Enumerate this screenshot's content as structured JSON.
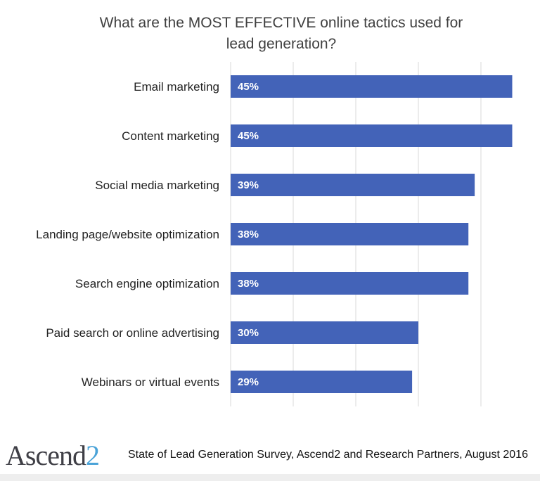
{
  "chart_data": {
    "type": "bar",
    "orientation": "horizontal",
    "title": "What are the MOST EFFECTIVE online tactics used for lead generation?",
    "categories": [
      "Email marketing",
      "Content marketing",
      "Social media marketing",
      "Landing page/website optimization",
      "Search engine optimization",
      "Paid search or online advertising",
      "Webinars or virtual events"
    ],
    "values": [
      45,
      45,
      39,
      38,
      38,
      30,
      29
    ],
    "data_labels": [
      "45%",
      "45%",
      "39%",
      "38%",
      "38%",
      "30%",
      "29%"
    ],
    "xlim": [
      0,
      50
    ],
    "gridlines": [
      0,
      10,
      20,
      30,
      40,
      50
    ],
    "grid": true,
    "legend": "none",
    "bar_color": "#4363b8"
  },
  "footer": {
    "logo_text": "Ascend",
    "logo_suffix": "2",
    "source": "State of Lead Generation Survey, Ascend2 and Research Partners, August 2016"
  },
  "colors": {
    "bar": "#4363b8",
    "grid": "#d9d9d9",
    "logo_accent": "#4aa3d8"
  }
}
